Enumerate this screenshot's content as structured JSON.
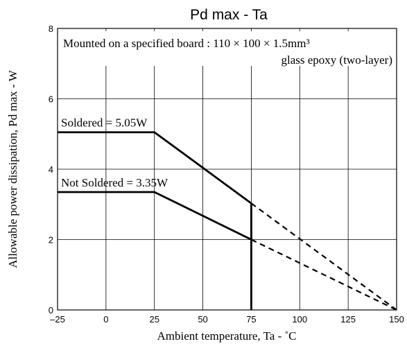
{
  "chart_data": {
    "type": "line",
    "title": "Pd max  -  Ta",
    "xlabel": "Ambient temperature,  Ta  - ˚C",
    "ylabel": "Allowable power dissipation,  Pd max  -  W",
    "xlim": [
      -25,
      150
    ],
    "ylim": [
      0,
      8
    ],
    "xticks": [
      "–25",
      "0",
      "25",
      "50",
      "75",
      "100",
      "125",
      "150"
    ],
    "yticks": [
      "0",
      "2",
      "4",
      "6",
      "8"
    ],
    "grid": true,
    "annotation": {
      "line1": "Mounted on a specified board : 110 × 100 × 1.5mm³",
      "line2": "glass epoxy (two-layer)"
    },
    "series": [
      {
        "name": "Soldered = 5.05W",
        "solid": [
          {
            "x": -25,
            "y": 5.05
          },
          {
            "x": 25,
            "y": 5.05
          },
          {
            "x": 75,
            "y": 3.03
          }
        ],
        "dashed": [
          {
            "x": 75,
            "y": 3.03
          },
          {
            "x": 150,
            "y": 0
          }
        ]
      },
      {
        "name": "Not Soldered = 3.35W",
        "solid": [
          {
            "x": -25,
            "y": 3.35
          },
          {
            "x": 25,
            "y": 3.35
          },
          {
            "x": 75,
            "y": 2.0
          }
        ],
        "dashed": [
          {
            "x": 75,
            "y": 2.0
          },
          {
            "x": 150,
            "y": 0
          }
        ]
      }
    ],
    "vertical_marker": {
      "x": 75,
      "y_from": 0,
      "y_to": 3.03
    }
  }
}
